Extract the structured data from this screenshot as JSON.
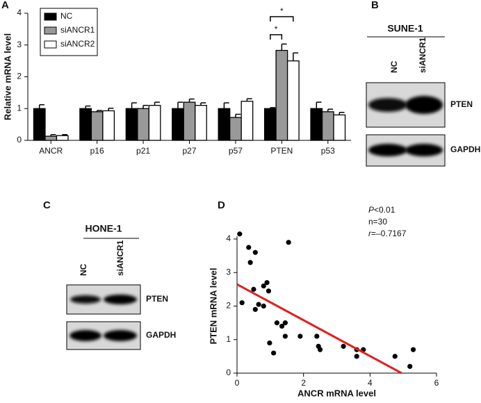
{
  "chart_data": [
    {
      "type": "bar",
      "panel_label": "A",
      "y_label": "Relative mRNA level",
      "categories": [
        "ANCR",
        "p16",
        "p21",
        "p27",
        "p57",
        "PTEN",
        "p53"
      ],
      "series": [
        {
          "name": "NC",
          "color": "#000000",
          "values": [
            1.0,
            1.0,
            1.0,
            1.0,
            1.0,
            1.0,
            1.0
          ],
          "errors": [
            0.12,
            0.08,
            0.18,
            0.2,
            0.18,
            0.03,
            0.2
          ]
        },
        {
          "name": "siANCR1",
          "color": "#999999",
          "values": [
            0.13,
            0.9,
            1.0,
            1.2,
            0.72,
            2.83,
            0.9
          ],
          "errors": [
            0.05,
            0.04,
            0.1,
            0.1,
            0.1,
            0.2,
            0.08
          ]
        },
        {
          "name": "siANCR2",
          "color": "#ffffff",
          "values": [
            0.15,
            0.93,
            1.1,
            1.1,
            1.23,
            2.5,
            0.8
          ],
          "errors": [
            0.03,
            0.08,
            0.1,
            0.08,
            0.08,
            0.25,
            0.08
          ]
        }
      ],
      "ylim": [
        0,
        4
      ],
      "yticks": [
        0,
        1,
        2,
        3,
        4
      ],
      "legend": "top-left",
      "significance": [
        {
          "category": "PTEN",
          "pair": [
            "NC",
            "siANCR1"
          ],
          "label": "*"
        },
        {
          "category": "PTEN",
          "pair": [
            "NC",
            "siANCR2"
          ],
          "label": "*"
        }
      ]
    },
    {
      "type": "scatter",
      "panel_label": "D",
      "x_label": "ANCR mRNA level",
      "y_label": "PTEN mRNA level",
      "x": [
        0.08,
        0.15,
        0.35,
        0.4,
        0.55,
        0.5,
        0.55,
        0.65,
        0.8,
        0.8,
        0.9,
        0.95,
        0.98,
        1.1,
        1.2,
        1.35,
        1.45,
        1.45,
        1.55,
        1.9,
        2.4,
        2.45,
        2.5,
        3.2,
        3.6,
        3.6,
        3.8,
        4.75,
        5.2,
        5.3
      ],
      "values": [
        4.15,
        2.1,
        3.75,
        3.3,
        3.6,
        2.5,
        1.9,
        2.05,
        2.0,
        2.6,
        2.7,
        2.45,
        0.9,
        0.6,
        1.5,
        1.4,
        1.5,
        1.1,
        3.9,
        1.1,
        1.1,
        0.8,
        0.7,
        0.8,
        0.5,
        0.7,
        0.7,
        0.5,
        0.2,
        0.7
      ],
      "color": "#000000",
      "trendline": {
        "x": [
          0,
          4.95
        ],
        "y": [
          2.65,
          0
        ],
        "color": "#e02020"
      },
      "xlim": [
        0,
        6
      ],
      "xticks": [
        0,
        2,
        4,
        6
      ],
      "ylim": [
        0,
        4
      ],
      "yticks": [
        0,
        1,
        2,
        3,
        4
      ],
      "annotations": [
        {
          "italic": "P",
          "text": "<0.01"
        },
        {
          "text": "n=30"
        },
        {
          "italic": "r",
          "text": "=–0.7167"
        }
      ]
    }
  ],
  "blots": [
    {
      "panel_label": "B",
      "cell_line": "SUNE-1",
      "lanes": [
        "NC",
        "siANCR1"
      ],
      "proteins": [
        "PTEN",
        "GAPDH"
      ]
    },
    {
      "panel_label": "C",
      "cell_line": "HONE-1",
      "lanes": [
        "NC",
        "siANCR1"
      ],
      "proteins": [
        "PTEN",
        "GAPDH"
      ]
    }
  ]
}
